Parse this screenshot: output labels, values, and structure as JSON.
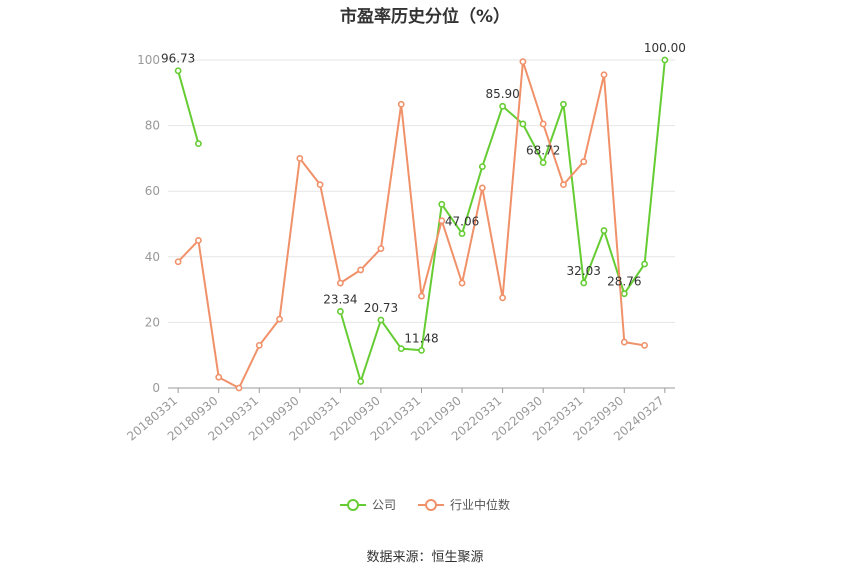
{
  "chart_data": {
    "type": "line",
    "title": "市盈率历史分位（%）",
    "ylim": [
      0,
      100
    ],
    "y_ticks": [
      0,
      20,
      40,
      60,
      80,
      100
    ],
    "grid": true,
    "legend_position": "bottom",
    "x": [
      "20180331",
      "20180630",
      "20180930",
      "20181231",
      "20190331",
      "20190630",
      "20190930",
      "20191231",
      "20200331",
      "20200630",
      "20200930",
      "20201231",
      "20210331",
      "20210630",
      "20210930",
      "20211231",
      "20220331",
      "20220630",
      "20220930",
      "20221231",
      "20230331",
      "20230630",
      "20230930",
      "20231231",
      "20240327"
    ],
    "x_tick_labels": [
      "20180331",
      "20180930",
      "20190331",
      "20190930",
      "20200331",
      "20200930",
      "20210331",
      "20210930",
      "20220331",
      "20220930",
      "20230331",
      "20230930",
      "20240327"
    ],
    "series": [
      {
        "name": "公司",
        "color": "#66cc33",
        "values": [
          96.73,
          74.5,
          null,
          null,
          null,
          null,
          null,
          null,
          23.34,
          2.0,
          20.73,
          12.0,
          11.48,
          56.0,
          47.06,
          67.5,
          85.9,
          80.5,
          68.72,
          86.5,
          32.03,
          48.0,
          28.76,
          37.8,
          100.0
        ],
        "labels": {
          "0": "96.73",
          "8": "23.34",
          "10": "20.73",
          "12": "11.48",
          "14": "47.06",
          "16": "85.90",
          "18": "68.72",
          "20": "32.03",
          "22": "28.76",
          "24": "100.00"
        }
      },
      {
        "name": "行业中位数",
        "color": "#f0916a",
        "values": [
          38.5,
          45.0,
          3.3,
          0.0,
          13.0,
          21.0,
          70.0,
          62.0,
          32.0,
          36.0,
          42.5,
          86.5,
          28.0,
          51.0,
          32.0,
          61.0,
          27.5,
          99.5,
          80.5,
          62.0,
          69.0,
          95.5,
          14.0,
          13.0,
          null
        ]
      }
    ],
    "source": "数据来源：恒生聚源"
  }
}
